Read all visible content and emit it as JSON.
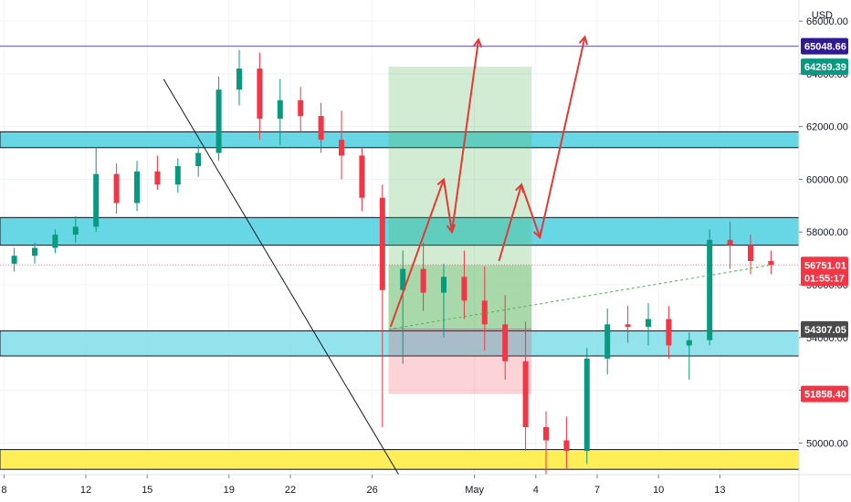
{
  "chart_data": {
    "type": "candlestick",
    "currency": "USD",
    "y_range": [
      48800,
      66800
    ],
    "y_ticks": [
      50000,
      52000,
      54000,
      56000,
      58000,
      60000,
      62000,
      64000,
      66000
    ],
    "y_tick_labels": [
      "50000.00",
      "52000.00",
      "54000.00",
      "56000.00",
      "58000.00",
      "60000.00",
      "62000.00",
      "64000.00",
      "66000.00"
    ],
    "x_ticks": [
      {
        "day": 8,
        "label": "8"
      },
      {
        "day": 12,
        "label": "12"
      },
      {
        "day": 15,
        "label": "15"
      },
      {
        "day": 19,
        "label": "19"
      },
      {
        "day": 22,
        "label": "22"
      },
      {
        "day": 26,
        "label": "26"
      },
      {
        "day": 31,
        "label": "May"
      },
      {
        "day": 34,
        "label": "4"
      },
      {
        "day": 37,
        "label": "7"
      },
      {
        "day": 40,
        "label": "10"
      },
      {
        "day": 43,
        "label": "13"
      }
    ],
    "x_range": [
      8,
      46
    ],
    "price_labels": [
      {
        "value": 65048.66,
        "text": "65048.66",
        "color": "#311b92"
      },
      {
        "value": 64269.39,
        "text": "64269.39",
        "color": "#089981"
      },
      {
        "value": 56751.01,
        "text": "56751.01",
        "sub": "01:55:17",
        "color": "#f23645"
      },
      {
        "value": 54307.05,
        "text": "54307.05",
        "color": "#4a4a4a"
      },
      {
        "value": 51858.4,
        "text": "51858.40",
        "color": "#f23645"
      }
    ],
    "zones": [
      {
        "kind": "resistance",
        "from": 61200,
        "to": 61800,
        "color": "#4dd0e1"
      },
      {
        "kind": "resistance",
        "from": 57500,
        "to": 58550,
        "color": "#4dd0e1"
      },
      {
        "kind": "support",
        "from": 53300,
        "to": 54250,
        "color": "#80deea"
      },
      {
        "kind": "support",
        "from": 49000,
        "to": 49750,
        "color": "#ffeb3b"
      }
    ],
    "candles": [
      [
        56300,
        57200,
        56000,
        56800
      ],
      [
        56800,
        57400,
        56500,
        57100
      ],
      [
        57100,
        57600,
        56800,
        57400
      ],
      [
        57400,
        58100,
        57200,
        57900
      ],
      [
        57900,
        58600,
        57600,
        58200
      ],
      [
        58200,
        61200,
        58000,
        60200
      ],
      [
        60200,
        60600,
        58700,
        59100
      ],
      [
        59100,
        60700,
        58800,
        60300
      ],
      [
        60300,
        60900,
        59600,
        59800
      ],
      [
        59800,
        60800,
        59500,
        60500
      ],
      [
        60500,
        61300,
        60100,
        61000
      ],
      [
        61000,
        63900,
        60700,
        63400
      ],
      [
        63400,
        64900,
        62800,
        64200
      ],
      [
        64200,
        64800,
        61500,
        62300
      ],
      [
        62300,
        63800,
        61300,
        63000
      ],
      [
        63000,
        63500,
        61800,
        62400
      ],
      [
        62400,
        62900,
        61000,
        61500
      ],
      [
        61500,
        62600,
        60000,
        60900
      ],
      [
        60900,
        61200,
        58800,
        59300
      ],
      [
        59300,
        59800,
        50600,
        55800
      ],
      [
        55800,
        57300,
        53000,
        56600
      ],
      [
        56600,
        57600,
        55000,
        55700
      ],
      [
        55700,
        56800,
        54000,
        56300
      ],
      [
        56300,
        57300,
        54700,
        55400
      ],
      [
        55400,
        56700,
        53500,
        54500
      ],
      [
        54500,
        55600,
        52400,
        53100
      ],
      [
        53100,
        54600,
        49700,
        50600
      ],
      [
        50600,
        51200,
        48800,
        50100
      ],
      [
        50100,
        51000,
        49000,
        49700
      ],
      [
        49700,
        53600,
        49200,
        53200
      ],
      [
        53200,
        55100,
        52600,
        54500
      ],
      [
        54500,
        55200,
        53800,
        54400
      ],
      [
        54400,
        55300,
        53700,
        54700
      ],
      [
        54700,
        55200,
        53200,
        53700
      ],
      [
        53700,
        54200,
        52400,
        53900
      ],
      [
        53900,
        58100,
        53700,
        57700
      ],
      [
        57700,
        58400,
        56600,
        57500
      ],
      [
        57500,
        57900,
        56400,
        56900
      ],
      [
        56900,
        57300,
        56400,
        56751
      ]
    ],
    "candle_days": [
      7.5,
      8.5,
      9.5,
      10.5,
      11.5,
      12.5,
      13.5,
      14.5,
      15.5,
      16.5,
      17.5,
      18.5,
      19.5,
      20.5,
      21.5,
      22.5,
      23.5,
      24.5,
      25.5,
      26.5,
      27.5,
      28.5,
      29.5,
      30.5,
      31.5,
      32.5,
      33.5,
      34.5,
      35.5,
      36.5,
      37.5,
      38.5,
      39.5,
      40.5,
      41.5,
      42.5,
      43.5,
      44.5,
      45.5
    ]
  }
}
